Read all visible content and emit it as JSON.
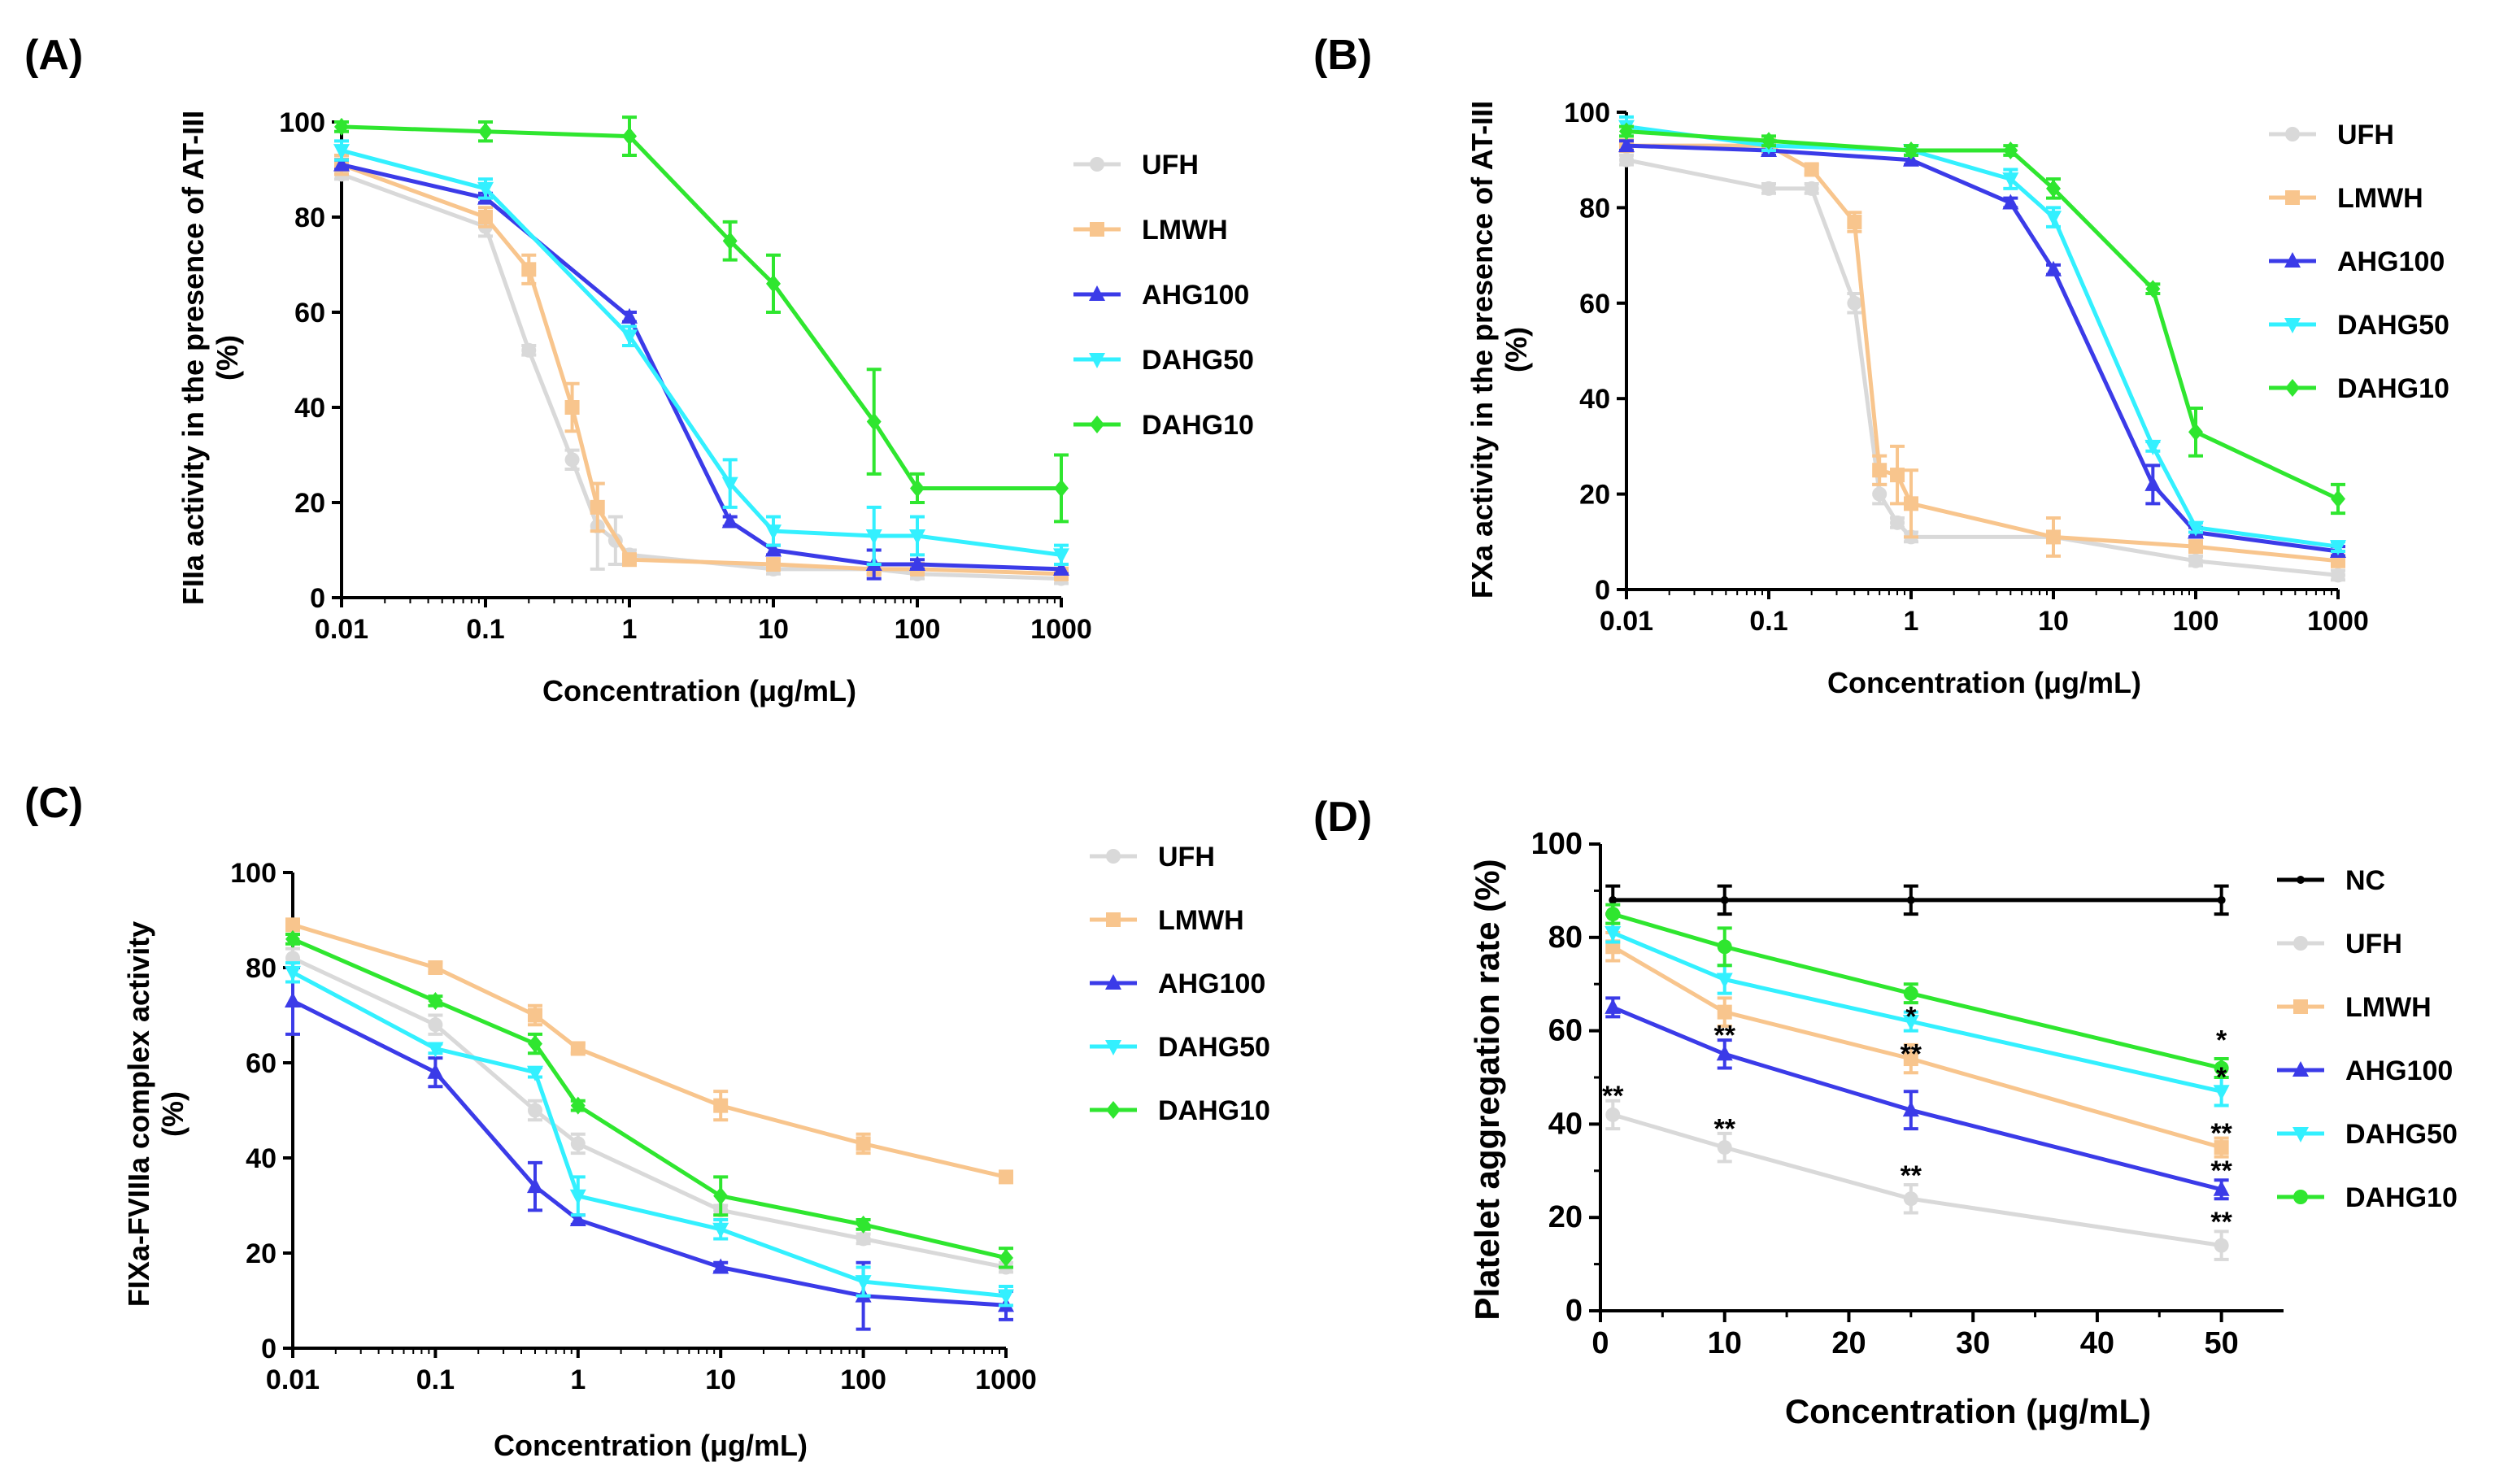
{
  "colors": {
    "NC": "#000000",
    "UFH": "#d9d9d9",
    "LMWH": "#f8c58d",
    "AHG100": "#3b3be8",
    "DAHG50": "#33f0ff",
    "DAHG10": "#2fe62f"
  },
  "chart_data": [
    {
      "panel": "(A)",
      "type": "line",
      "xscale": "log",
      "xlabel": "Concentration (μg/mL)",
      "ylabel_lines": [
        "FIIa activity in the presence of AT-III",
        "(%)"
      ],
      "ylim": [
        0,
        100
      ],
      "yticks": [
        0,
        20,
        40,
        60,
        80,
        100
      ],
      "xticks": [
        0.01,
        0.1,
        1,
        10,
        100,
        1000
      ],
      "xtick_labels": [
        "0.01",
        "0.1",
        "1",
        "10",
        "100",
        "1000"
      ],
      "legend": [
        "UFH",
        "LMWH",
        "AHG100",
        "DAHG50",
        "DAHG10"
      ],
      "series": [
        {
          "name": "UFH",
          "marker": "circle",
          "x": [
            0.01,
            0.1,
            0.2,
            0.4,
            0.6,
            0.8,
            1,
            10,
            50,
            100,
            1000
          ],
          "values": [
            89,
            78,
            52,
            29,
            15,
            12,
            9,
            6,
            6,
            5,
            4
          ],
          "errors": [
            1,
            2,
            1,
            2,
            9,
            5,
            1,
            1,
            1,
            1,
            1
          ]
        },
        {
          "name": "LMWH",
          "marker": "square",
          "x": [
            0.01,
            0.1,
            0.2,
            0.4,
            0.6,
            1,
            10,
            50,
            100,
            1000
          ],
          "values": [
            91,
            80,
            69,
            40,
            19,
            8,
            7,
            6,
            6,
            5
          ],
          "errors": [
            2,
            2,
            3,
            5,
            5,
            1,
            1,
            1,
            1,
            1
          ]
        },
        {
          "name": "AHG100",
          "marker": "triangle-up",
          "x": [
            0.01,
            0.1,
            1,
            5,
            10,
            50,
            100,
            1000
          ],
          "values": [
            91,
            84,
            59,
            16,
            10,
            7,
            7,
            6
          ],
          "errors": [
            1,
            1,
            1,
            1,
            1,
            3,
            1,
            1
          ]
        },
        {
          "name": "DAHG50",
          "marker": "triangle-down",
          "x": [
            0.01,
            0.1,
            1,
            5,
            10,
            50,
            100,
            1000
          ],
          "values": [
            94,
            86,
            55,
            24,
            14,
            13,
            13,
            9
          ],
          "errors": [
            2,
            2,
            2,
            5,
            3,
            6,
            4,
            2
          ]
        },
        {
          "name": "DAHG10",
          "marker": "diamond",
          "x": [
            0.01,
            0.1,
            1,
            5,
            10,
            50,
            100,
            1000
          ],
          "values": [
            99,
            98,
            97,
            75,
            66,
            37,
            23,
            23
          ],
          "errors": [
            1,
            2,
            4,
            4,
            6,
            11,
            3,
            7
          ]
        }
      ]
    },
    {
      "panel": "(B)",
      "type": "line",
      "xscale": "log",
      "xlabel": "Concentration (μg/mL)",
      "ylabel_lines": [
        "FXa activity in the presence of AT-III",
        "(%)"
      ],
      "ylim": [
        0,
        100
      ],
      "yticks": [
        0,
        20,
        40,
        60,
        80,
        100
      ],
      "xticks": [
        0.01,
        0.1,
        1,
        10,
        100,
        1000
      ],
      "xtick_labels": [
        "0.01",
        "0.1",
        "1",
        "10",
        "100",
        "1000"
      ],
      "legend": [
        "UFH",
        "LMWH",
        "AHG100",
        "DAHG50",
        "DAHG10"
      ],
      "series": [
        {
          "name": "UFH",
          "marker": "circle",
          "x": [
            0.01,
            0.1,
            0.2,
            0.4,
            0.6,
            0.8,
            1,
            10,
            100,
            1000
          ],
          "values": [
            90,
            84,
            84,
            60,
            20,
            14,
            11,
            11,
            6,
            3
          ],
          "errors": [
            1,
            1,
            1,
            2,
            2,
            1,
            1,
            1,
            1,
            1
          ]
        },
        {
          "name": "LMWH",
          "marker": "square",
          "x": [
            0.01,
            0.1,
            0.2,
            0.4,
            0.6,
            0.8,
            1,
            10,
            100,
            1000
          ],
          "values": [
            93,
            93,
            88,
            77,
            25,
            24,
            18,
            11,
            9,
            6
          ],
          "errors": [
            1,
            1,
            1,
            2,
            3,
            6,
            7,
            4,
            1,
            1
          ]
        },
        {
          "name": "AHG100",
          "marker": "triangle-up",
          "x": [
            0.01,
            0.1,
            1,
            5,
            10,
            50,
            100,
            1000
          ],
          "values": [
            93,
            92,
            90,
            81,
            67,
            22,
            12,
            8
          ],
          "errors": [
            1,
            1,
            1,
            1,
            1,
            4,
            1,
            1
          ]
        },
        {
          "name": "DAHG50",
          "marker": "triangle-down",
          "x": [
            0.01,
            0.1,
            1,
            5,
            10,
            50,
            100,
            1000
          ],
          "values": [
            97,
            93,
            92,
            86,
            78,
            30,
            13,
            9
          ],
          "errors": [
            2,
            1,
            1,
            2,
            2,
            1,
            1,
            1
          ]
        },
        {
          "name": "DAHG10",
          "marker": "diamond",
          "x": [
            0.01,
            0.1,
            1,
            5,
            10,
            50,
            100,
            1000
          ],
          "values": [
            96,
            94,
            92,
            92,
            84,
            63,
            33,
            19
          ],
          "errors": [
            1,
            1,
            1,
            1,
            2,
            1,
            5,
            3
          ]
        }
      ]
    },
    {
      "panel": "(C)",
      "type": "line",
      "xscale": "log",
      "xlabel": "Concentration (μg/mL)",
      "ylabel_lines": [
        "FIXa-FVIIIa complex activity",
        "(%)"
      ],
      "ylim": [
        0,
        100
      ],
      "yticks": [
        0,
        20,
        40,
        60,
        80,
        100
      ],
      "xticks": [
        0.01,
        0.1,
        1,
        10,
        100,
        1000
      ],
      "xtick_labels": [
        "0.01",
        "0.1",
        "1",
        "10",
        "100",
        "1000"
      ],
      "legend": [
        "UFH",
        "LMWH",
        "AHG100",
        "DAHG50",
        "DAHG10"
      ],
      "series": [
        {
          "name": "UFH",
          "marker": "circle",
          "x": [
            0.01,
            0.1,
            0.5,
            1,
            10,
            100,
            1000
          ],
          "values": [
            82,
            68,
            50,
            43,
            29,
            23,
            17
          ],
          "errors": [
            2,
            2,
            2,
            2,
            1,
            1,
            1
          ]
        },
        {
          "name": "LMWH",
          "marker": "square",
          "x": [
            0.01,
            0.1,
            0.5,
            1,
            10,
            100,
            1000
          ],
          "values": [
            89,
            80,
            70,
            63,
            51,
            43,
            36
          ],
          "errors": [
            1,
            1,
            2,
            1,
            3,
            2,
            1
          ]
        },
        {
          "name": "AHG100",
          "marker": "triangle-up",
          "x": [
            0.01,
            0.1,
            0.5,
            1,
            10,
            100,
            1000
          ],
          "values": [
            73,
            58,
            34,
            27,
            17,
            11,
            9
          ],
          "errors": [
            7,
            3,
            5,
            1,
            1,
            7,
            3
          ]
        },
        {
          "name": "DAHG50",
          "marker": "triangle-down",
          "x": [
            0.01,
            0.1,
            0.5,
            1,
            10,
            100,
            1000
          ],
          "values": [
            79,
            63,
            58,
            32,
            25,
            14,
            11
          ],
          "errors": [
            2,
            1,
            1,
            4,
            2,
            3,
            2
          ]
        },
        {
          "name": "DAHG10",
          "marker": "diamond",
          "x": [
            0.01,
            0.1,
            0.5,
            1,
            10,
            100,
            1000
          ],
          "values": [
            86,
            73,
            64,
            51,
            32,
            26,
            19
          ],
          "errors": [
            1,
            1,
            2,
            1,
            4,
            1,
            2
          ]
        }
      ]
    },
    {
      "panel": "(D)",
      "type": "line",
      "xscale": "linear",
      "xlabel": "Concentration (μg/mL)",
      "ylabel_lines": [
        "Platelet aggregation rate (%)"
      ],
      "xlim": [
        0,
        55
      ],
      "ylim": [
        0,
        100
      ],
      "yticks": [
        0,
        20,
        40,
        60,
        80,
        100
      ],
      "xticks": [
        0,
        10,
        20,
        30,
        40,
        50
      ],
      "xtick_labels": [
        "0",
        "10",
        "20",
        "30",
        "40",
        "50"
      ],
      "legend": [
        "NC",
        "UFH",
        "LMWH",
        "AHG100",
        "DAHG50",
        "DAHG10"
      ],
      "series": [
        {
          "name": "NC",
          "marker": "dot",
          "x": [
            1,
            10,
            25,
            50
          ],
          "values": [
            88,
            88,
            88,
            88
          ],
          "errors": [
            3,
            3,
            3,
            3
          ]
        },
        {
          "name": "UFH",
          "marker": "circle",
          "x": [
            1,
            10,
            25,
            50
          ],
          "values": [
            42,
            35,
            24,
            14
          ],
          "errors": [
            3,
            3,
            3,
            3
          ]
        },
        {
          "name": "LMWH",
          "marker": "square",
          "x": [
            1,
            10,
            25,
            50
          ],
          "values": [
            78,
            64,
            54,
            35
          ],
          "errors": [
            3,
            3,
            3,
            2
          ]
        },
        {
          "name": "AHG100",
          "marker": "triangle-up",
          "x": [
            1,
            10,
            25,
            50
          ],
          "values": [
            65,
            55,
            43,
            26
          ],
          "errors": [
            2,
            3,
            4,
            2
          ]
        },
        {
          "name": "DAHG50",
          "marker": "triangle-down",
          "x": [
            1,
            10,
            25,
            50
          ],
          "values": [
            81,
            71,
            62,
            47
          ],
          "errors": [
            2,
            3,
            2,
            3
          ]
        },
        {
          "name": "DAHG10",
          "marker": "circle",
          "x": [
            1,
            10,
            25,
            50
          ],
          "values": [
            85,
            78,
            68,
            52
          ],
          "errors": [
            2,
            4,
            2,
            2
          ]
        }
      ],
      "annotations": [
        {
          "x": 1,
          "y": 43,
          "text": "**"
        },
        {
          "x": 10,
          "y": 36,
          "text": "**"
        },
        {
          "x": 10,
          "y": 56,
          "text": "**"
        },
        {
          "x": 25,
          "y": 26,
          "text": "**"
        },
        {
          "x": 25,
          "y": 52,
          "text": "**"
        },
        {
          "x": 25,
          "y": 60,
          "text": "*"
        },
        {
          "x": 50,
          "y": 16,
          "text": "**"
        },
        {
          "x": 50,
          "y": 27,
          "text": "**"
        },
        {
          "x": 50,
          "y": 35,
          "text": "**"
        },
        {
          "x": 50,
          "y": 47,
          "text": "*"
        },
        {
          "x": 50,
          "y": 55,
          "text": "*"
        }
      ]
    }
  ]
}
